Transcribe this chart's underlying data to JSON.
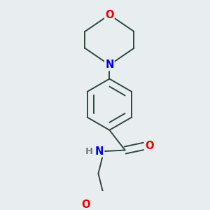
{
  "background_color": "#e8edf0",
  "bond_color": "#2d4a3e",
  "atom_colors": {
    "N": "#0000ee",
    "O": "#ee0000",
    "H": "#777777"
  },
  "line_width": 1.4,
  "font_size": 10.5
}
